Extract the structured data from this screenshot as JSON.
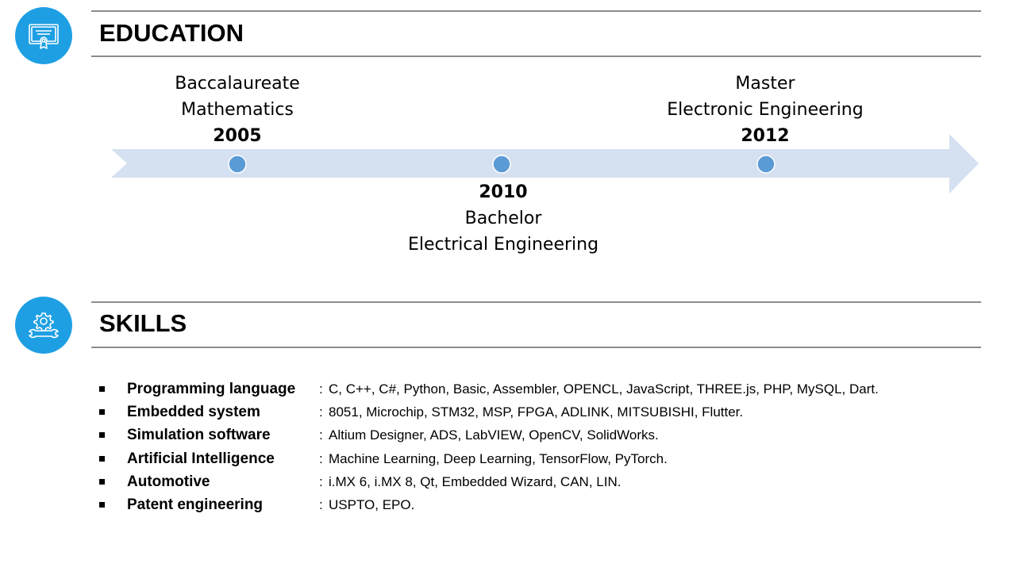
{
  "colors": {
    "icon_bg": "#1e9fe3",
    "rule": "#8c8c8c",
    "arrow": "#d5e0f0",
    "dot": "#5b9bd5"
  },
  "education": {
    "title": "EDUCATION",
    "icon": "certificate-icon",
    "entries": [
      {
        "line1": "Baccalaureate",
        "line2": "Mathematics",
        "year": "2005"
      },
      {
        "year": "2010",
        "line1": "Bachelor",
        "line2": "Electrical Engineering"
      },
      {
        "line1": "Master",
        "line2": "Electronic Engineering",
        "year": "2012"
      }
    ]
  },
  "skills": {
    "title": "SKILLS",
    "icon": "gear-wrench-icon",
    "separator": ":",
    "items": [
      {
        "name": "Programming language",
        "values": "C, C++, C#, Python, Basic, Assembler, OPENCL, JavaScript, THREE.js, PHP, MySQL, Dart."
      },
      {
        "name": "Embedded system",
        "values": "8051, Microchip, STM32, MSP, FPGA, ADLINK, MITSUBISHI, Flutter."
      },
      {
        "name": "Simulation software",
        "values": "Altium Designer, ADS, LabVIEW, OpenCV, SolidWorks."
      },
      {
        "name": "Artificial Intelligence",
        "values": "Machine Learning, Deep Learning, TensorFlow, PyTorch."
      },
      {
        "name": "Automotive",
        "values": "i.MX 6, i.MX 8, Qt, Embedded Wizard, CAN, LIN."
      },
      {
        "name": "Patent engineering",
        "values": "USPTO, EPO."
      }
    ]
  }
}
